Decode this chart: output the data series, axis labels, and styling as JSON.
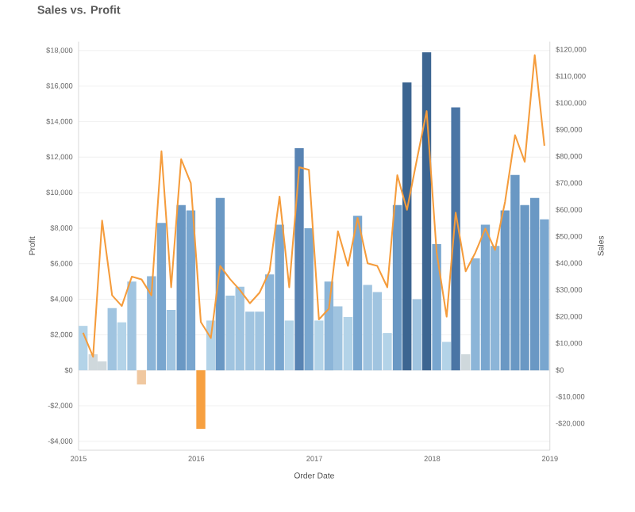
{
  "chart_data": {
    "type": "bar",
    "title": "Sales vs. Profit",
    "xlabel": "Order Date",
    "ylabel": "Profit",
    "y2label": "Sales",
    "x": [
      "2015-01-15",
      "2015-02-15",
      "2015-03-15",
      "2015-04-15",
      "2015-05-15",
      "2015-06-15",
      "2015-07-15",
      "2015-08-15",
      "2015-09-15",
      "2015-10-15",
      "2015-11-15",
      "2015-12-15",
      "2016-01-15",
      "2016-02-15",
      "2016-03-15",
      "2016-04-15",
      "2016-05-15",
      "2016-06-15",
      "2016-07-15",
      "2016-08-15",
      "2016-09-15",
      "2016-10-15",
      "2016-11-15",
      "2016-12-15",
      "2017-01-15",
      "2017-02-15",
      "2017-03-15",
      "2017-04-15",
      "2017-05-15",
      "2017-06-15",
      "2017-07-15",
      "2017-08-15",
      "2017-09-15",
      "2017-10-15",
      "2017-11-15",
      "2017-12-15",
      "2018-01-15",
      "2018-02-15",
      "2018-03-15",
      "2018-04-15",
      "2018-05-15",
      "2018-06-15",
      "2018-07-15",
      "2018-08-15",
      "2018-09-15",
      "2018-10-15",
      "2018-11-15",
      "2018-12-15"
    ],
    "series": [
      {
        "values": [
          2500,
          900,
          500,
          3500,
          2700,
          5000,
          -800,
          5300,
          8300,
          3400,
          9300,
          9000,
          -3300,
          2800,
          9700,
          4200,
          4700,
          3300,
          3300,
          5400,
          8200,
          2800,
          12500,
          8000,
          2800,
          5000,
          3600,
          3000,
          8700,
          4800,
          4400,
          2100,
          9300,
          16200,
          4000,
          17900,
          7100,
          1600,
          14800,
          900,
          6300,
          8200,
          7000,
          9000,
          11000,
          9300,
          9700,
          8500
        ],
        "colors": [
          "#b3d3e8",
          "#cfd8dc",
          "#cfd8dc",
          "#a0c4e0",
          "#b3d3e8",
          "#a0c4e0",
          "#f0c8a0",
          "#8cb5d8",
          "#79a6cf",
          "#a0c4e0",
          "#6a98c4",
          "#79a6cf",
          "#f7a040",
          "#b3d3e8",
          "#6a98c4",
          "#a0c4e0",
          "#a0c4e0",
          "#a0c4e0",
          "#a0c4e0",
          "#8cb5d8",
          "#79a6cf",
          "#b3d3e8",
          "#5883b3",
          "#79a6cf",
          "#b3d3e8",
          "#8cb5d8",
          "#a0c4e0",
          "#b3d3e8",
          "#79a6cf",
          "#a0c4e0",
          "#a0c4e0",
          "#b3d3e8",
          "#6a98c4",
          "#3c6591",
          "#a0c4e0",
          "#3c6591",
          "#79a6cf",
          "#b3d3e8",
          "#4a75a5",
          "#cfd8dc",
          "#8cb5d8",
          "#79a6cf",
          "#8cb5d8",
          "#6a98c4",
          "#6a98c4",
          "#6a98c4",
          "#6a98c4",
          "#79a6cf"
        ]
      },
      {
        "type": "line",
        "axis": "y2",
        "color": "#f59c3c",
        "values": [
          14000,
          5000,
          56000,
          28000,
          24000,
          35000,
          34000,
          28000,
          82000,
          31000,
          79000,
          70000,
          18000,
          12000,
          39000,
          34000,
          30000,
          25000,
          29000,
          37000,
          65000,
          31000,
          76000,
          75000,
          19000,
          23000,
          52000,
          39000,
          57000,
          40000,
          39000,
          31000,
          73000,
          60000,
          79000,
          97000,
          44000,
          20000,
          59000,
          37000,
          44000,
          53000,
          45000,
          63000,
          88000,
          78000,
          118000,
          84000
        ]
      }
    ],
    "xlim": [
      "2015",
      "2019"
    ],
    "xticks": [
      "2015",
      "2016",
      "2017",
      "2018",
      "2019"
    ],
    "ylim": [
      -4500,
      18500
    ],
    "yticks": [
      {
        "value": -4000,
        "label": "-$4,000"
      },
      {
        "value": -2000,
        "label": "-$2,000"
      },
      {
        "value": 0,
        "label": "$0"
      },
      {
        "value": 2000,
        "label": "$2,000"
      },
      {
        "value": 4000,
        "label": "$4,000"
      },
      {
        "value": 6000,
        "label": "$6,000"
      },
      {
        "value": 8000,
        "label": "$8,000"
      },
      {
        "value": 10000,
        "label": "$10,000"
      },
      {
        "value": 12000,
        "label": "$12,000"
      },
      {
        "value": 14000,
        "label": "$14,000"
      },
      {
        "value": 16000,
        "label": "$16,000"
      },
      {
        "value": 18000,
        "label": "$18,000"
      }
    ],
    "y2lim": [
      -30000,
      123000
    ],
    "y2ticks": [
      {
        "value": -20000,
        "label": "-$20,000"
      },
      {
        "value": -10000,
        "label": "-$10,000"
      },
      {
        "value": 0,
        "label": "$0"
      },
      {
        "value": 10000,
        "label": "$10,000"
      },
      {
        "value": 20000,
        "label": "$20,000"
      },
      {
        "value": 30000,
        "label": "$30,000"
      },
      {
        "value": 40000,
        "label": "$40,000"
      },
      {
        "value": 50000,
        "label": "$50,000"
      },
      {
        "value": 60000,
        "label": "$60,000"
      },
      {
        "value": 70000,
        "label": "$70,000"
      },
      {
        "value": 80000,
        "label": "$80,000"
      },
      {
        "value": 90000,
        "label": "$90,000"
      },
      {
        "value": 100000,
        "label": "$100,000"
      },
      {
        "value": 110000,
        "label": "$110,000"
      },
      {
        "value": 120000,
        "label": "$120,000"
      }
    ],
    "grid": "y"
  }
}
